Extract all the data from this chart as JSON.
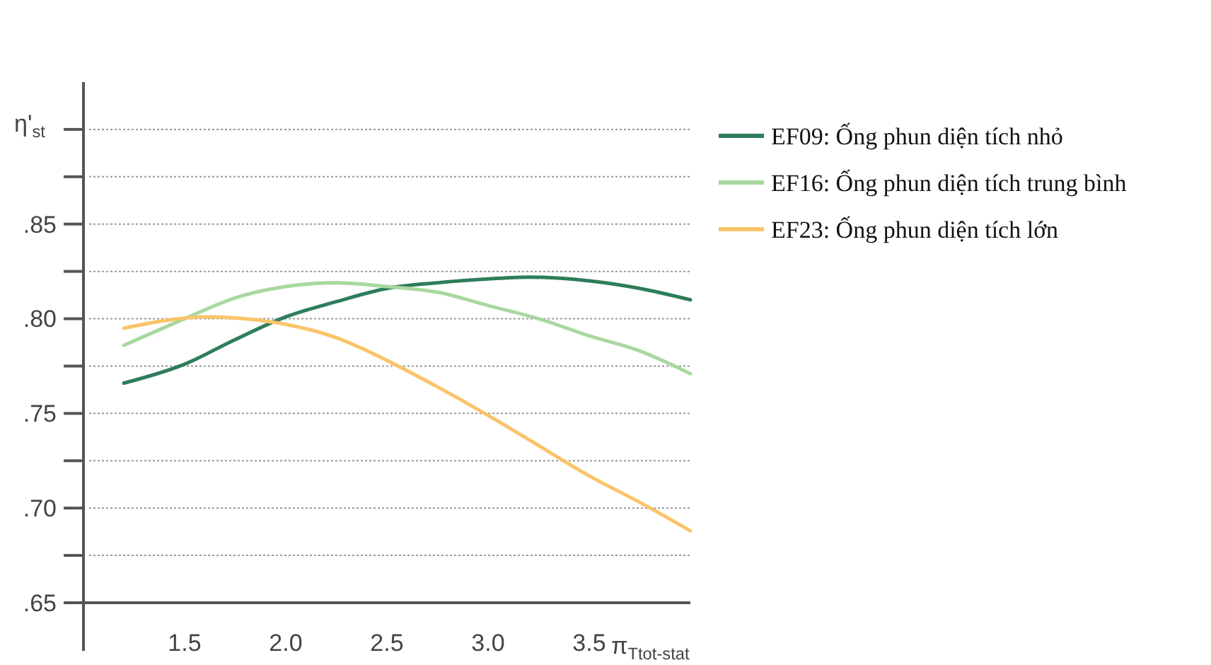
{
  "chart_data": {
    "type": "line",
    "xlabel": "π$_{Ttot-stat}$",
    "ylabel": "η'$_{st}$",
    "xlim": [
      1.0,
      4.0
    ],
    "ylim": [
      0.65,
      0.925
    ],
    "xticks": [
      {
        "value": 1.5,
        "label": "1.5"
      },
      {
        "value": 2.0,
        "label": "2.0"
      },
      {
        "value": 2.5,
        "label": "2.5"
      },
      {
        "value": 3.0,
        "label": "3.0"
      },
      {
        "value": 3.5,
        "label": "3.5"
      }
    ],
    "yticks": [
      {
        "value": 0.65,
        "label": ".65"
      },
      {
        "value": 0.675,
        "label": null
      },
      {
        "value": 0.7,
        "label": ".70"
      },
      {
        "value": 0.725,
        "label": null
      },
      {
        "value": 0.75,
        "label": ".75"
      },
      {
        "value": 0.775,
        "label": null
      },
      {
        "value": 0.8,
        "label": ".80"
      },
      {
        "value": 0.825,
        "label": null
      },
      {
        "value": 0.85,
        "label": ".85"
      },
      {
        "value": 0.875,
        "label": null
      },
      {
        "value": 0.9,
        "label": null
      }
    ],
    "grid": "y",
    "legend": "right",
    "marker": "none",
    "line_style": "solid",
    "series": [
      {
        "name": "EF09: Ống phun diện tích nhỏ",
        "color": "#2e7d5b",
        "x": [
          1.2,
          1.5,
          1.75,
          2.0,
          2.25,
          2.5,
          2.75,
          3.0,
          3.2,
          3.5,
          3.75,
          4.0
        ],
        "values": [
          0.766,
          0.776,
          0.789,
          0.801,
          0.809,
          0.816,
          0.819,
          0.821,
          0.822,
          0.82,
          0.816,
          0.81
        ]
      },
      {
        "name": "EF16: Ống phun diện tích trung bình",
        "color": "#a8d8a0",
        "x": [
          1.2,
          1.5,
          1.75,
          2.0,
          2.25,
          2.5,
          2.75,
          3.0,
          3.25,
          3.5,
          3.75,
          4.0
        ],
        "values": [
          0.786,
          0.8,
          0.811,
          0.817,
          0.819,
          0.817,
          0.814,
          0.807,
          0.8,
          0.791,
          0.783,
          0.771
        ]
      },
      {
        "name": "EF23: Ống phun diện tích lớn",
        "color": "#f9c46a",
        "x": [
          1.2,
          1.4,
          1.6,
          1.8,
          2.0,
          2.25,
          2.5,
          2.75,
          3.0,
          3.25,
          3.5,
          3.75,
          4.0
        ],
        "values": [
          0.795,
          0.799,
          0.801,
          0.8,
          0.797,
          0.79,
          0.778,
          0.764,
          0.749,
          0.733,
          0.717,
          0.703,
          0.688
        ]
      }
    ]
  }
}
